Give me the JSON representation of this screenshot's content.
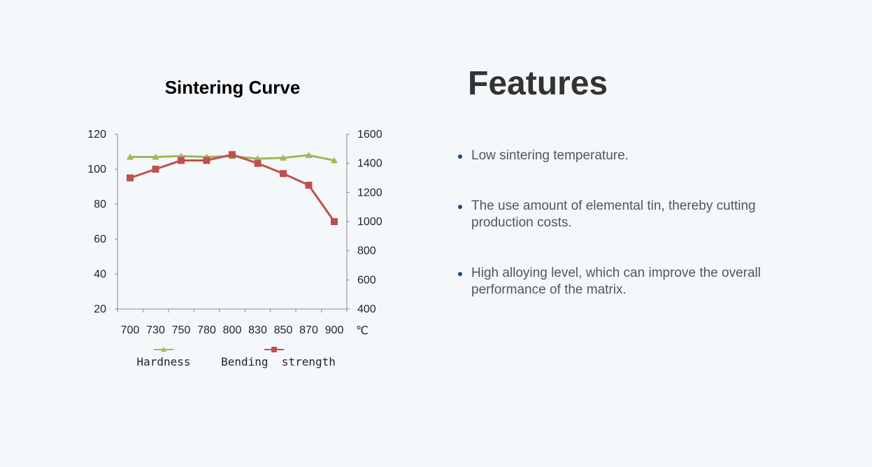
{
  "features": {
    "title": "Features",
    "items": [
      "Low sintering temperature.",
      "The use amount of elemental tin, thereby cutting production costs.",
      "High alloying level, which can improve the overall performance of the matrix."
    ]
  },
  "chart_data": {
    "type": "line",
    "title": "Sintering Curve",
    "x_unit_label": "℃",
    "categories": [
      "700",
      "730",
      "750",
      "780",
      "800",
      "830",
      "850",
      "870",
      "900"
    ],
    "left_axis": {
      "min": 20,
      "max": 120,
      "ticks": [
        20,
        40,
        60,
        80,
        100,
        120
      ]
    },
    "right_axis": {
      "min": 400,
      "max": 1600,
      "ticks": [
        400,
        600,
        800,
        1000,
        1200,
        1400,
        1600
      ]
    },
    "series": [
      {
        "name": "Hardness",
        "axis": "left",
        "marker": "triangle",
        "color": "#9bbb59",
        "values": [
          107,
          107,
          107.5,
          107,
          107.5,
          106,
          106.5,
          108,
          105
        ]
      },
      {
        "name": "Bending  strength",
        "axis": "right",
        "marker": "square",
        "color": "#c0504d",
        "values": [
          1300,
          1360,
          1420,
          1420,
          1460,
          1400,
          1330,
          1250,
          1000
        ]
      }
    ]
  }
}
